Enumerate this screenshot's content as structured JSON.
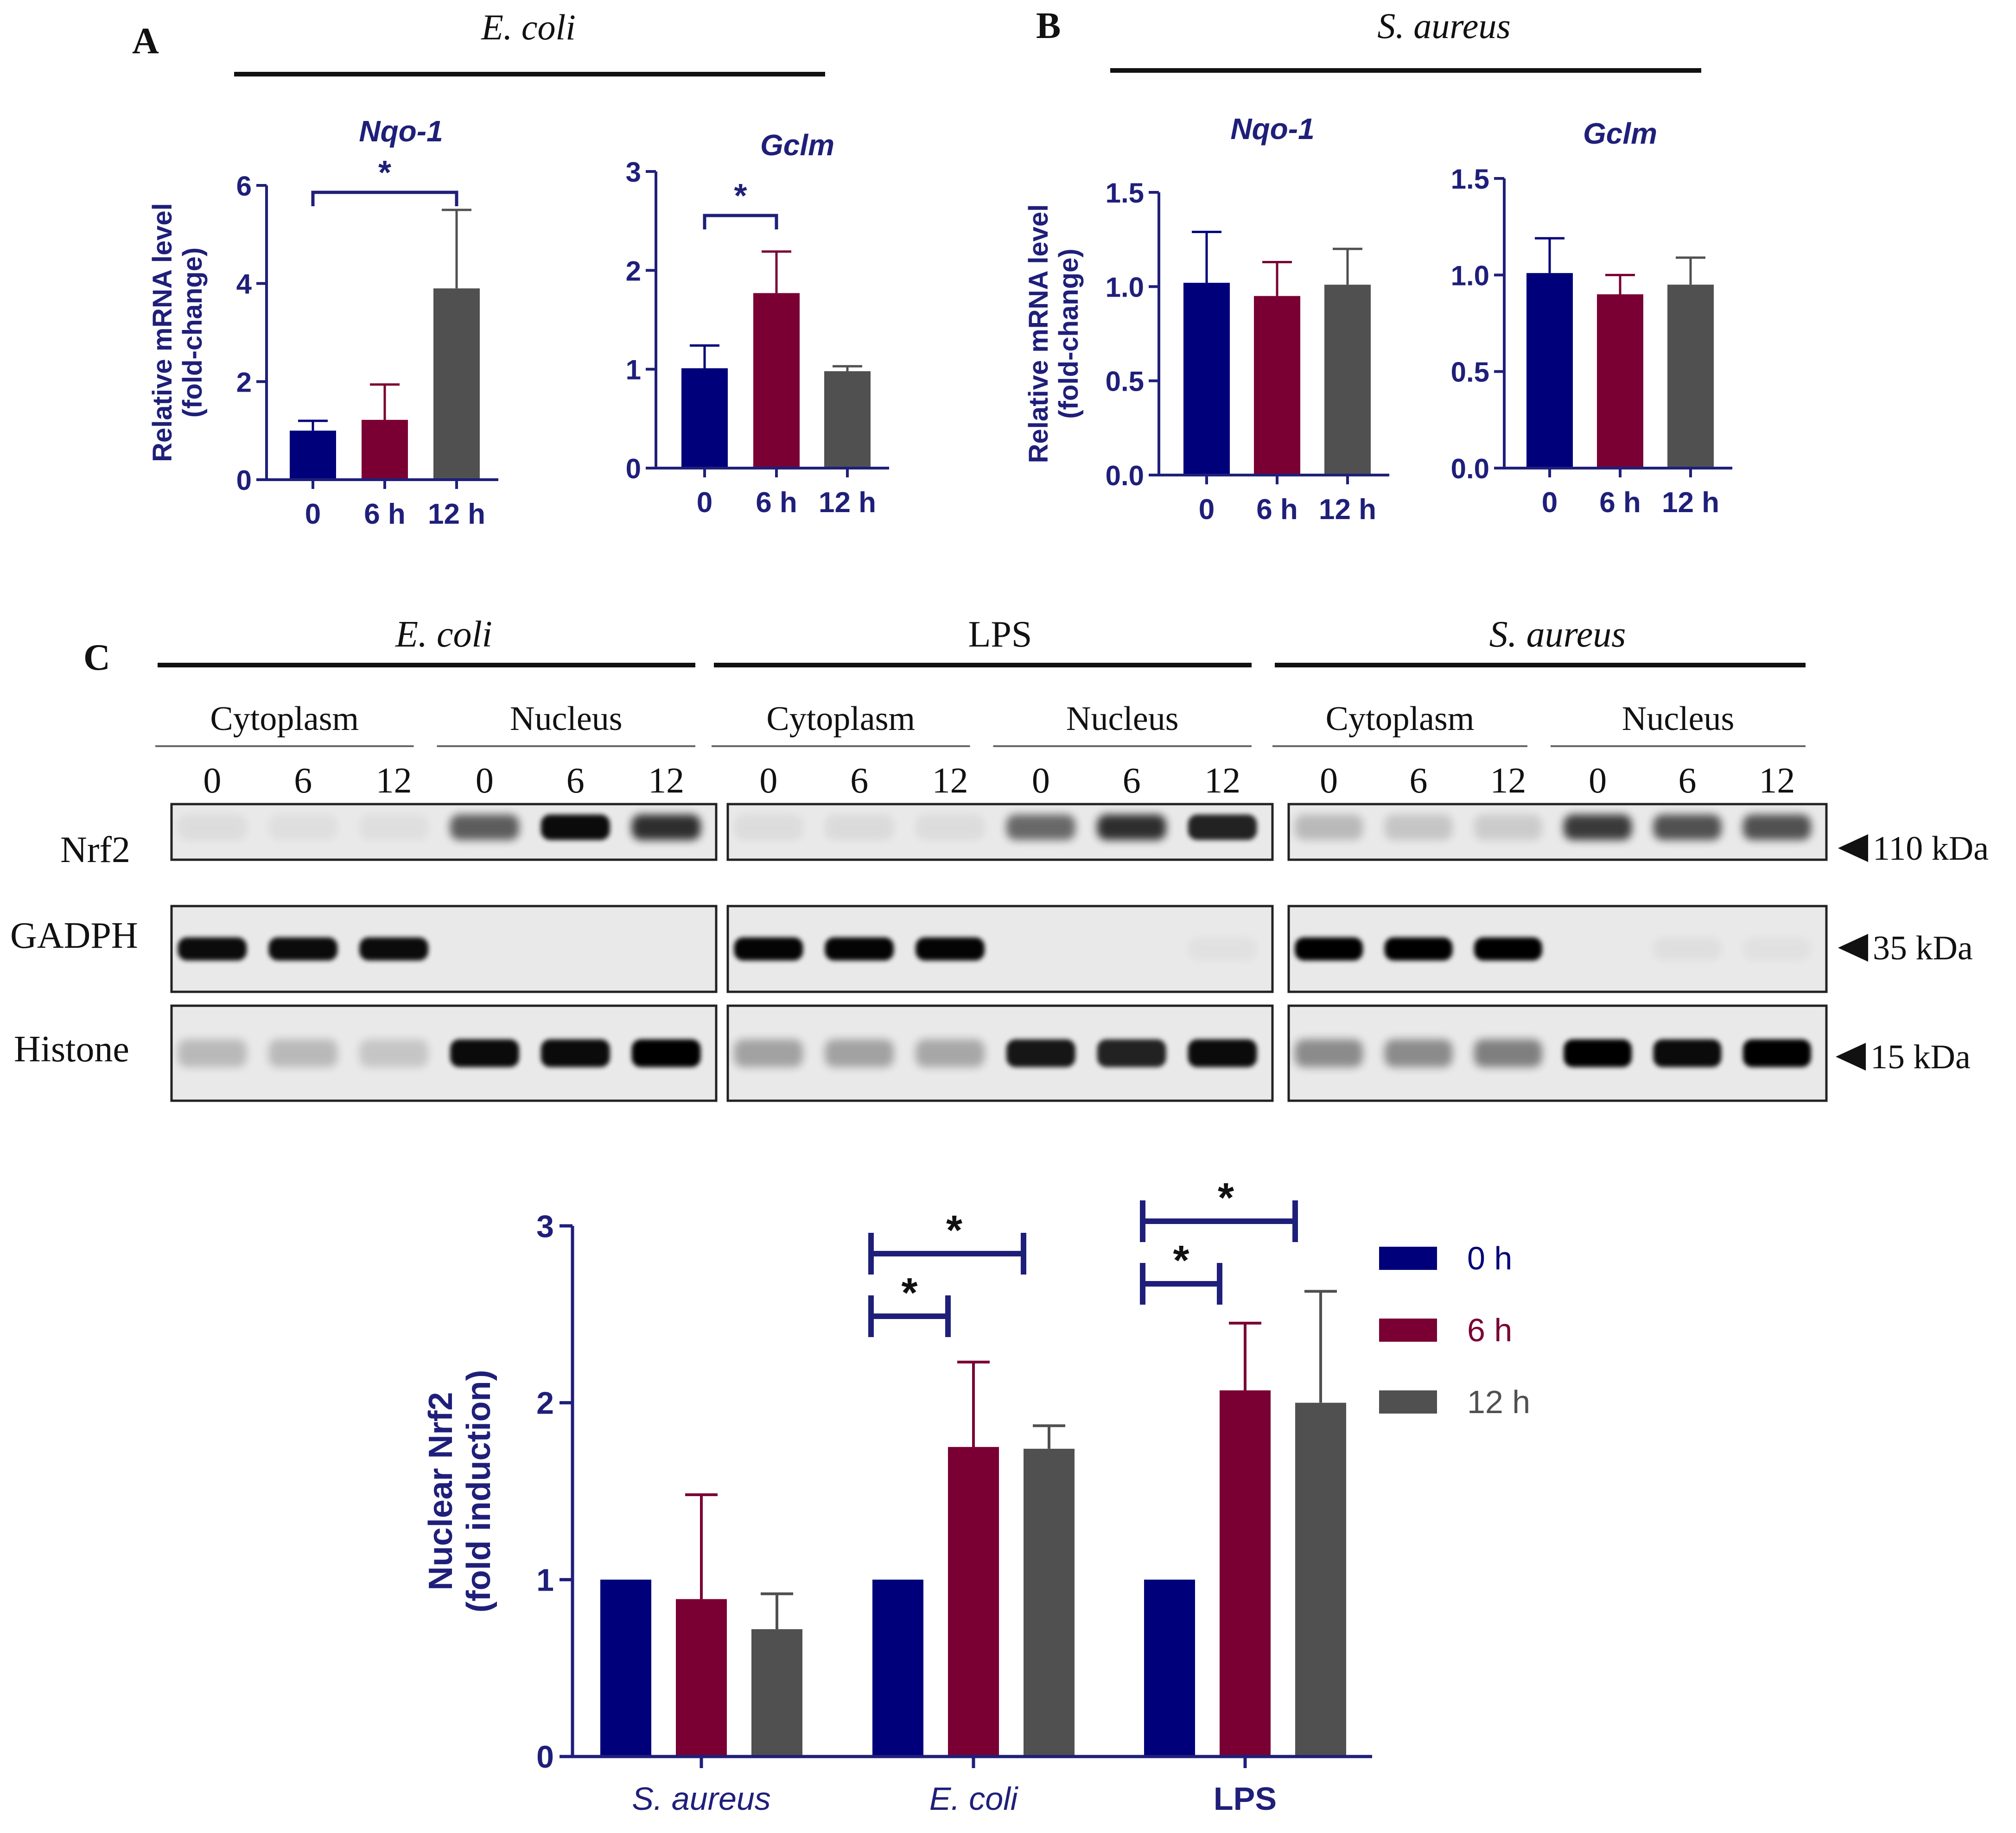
{
  "colors": {
    "navy": "#00007a",
    "maroon": "#7a0033",
    "gray": "#505050",
    "axis": "#1f1f7a",
    "text": "#111111"
  },
  "panels": {
    "a": {
      "letter": "A",
      "group": "E. coli"
    },
    "b": {
      "letter": "B",
      "group": "S. aureus"
    },
    "c": {
      "letter": "C"
    }
  },
  "blot": {
    "groups": [
      "E. coli",
      "LPS",
      "S. aureus"
    ],
    "fractions": [
      "Cytoplasm",
      "Nucleus"
    ],
    "lanes": [
      "0",
      "6",
      "12"
    ],
    "rows": [
      {
        "label": "Nrf2",
        "kda": "110 kDa"
      },
      {
        "label": "GADPH",
        "kda": "35 kDa"
      },
      {
        "label": "Histone",
        "kda": "15 kDa"
      }
    ]
  },
  "chart_data": [
    {
      "id": "a1",
      "type": "bar",
      "title": "Nqo-1",
      "ylabel": "Relative mRNA level (fold-change)",
      "categories": [
        "0",
        "6 h",
        "12 h"
      ],
      "values": [
        1.0,
        1.22,
        3.9
      ],
      "errors": [
        0.2,
        0.72,
        1.6
      ],
      "ylim": [
        0,
        6
      ],
      "yticks": [
        "0",
        "2",
        "4",
        "6"
      ],
      "ytick_values": [
        0,
        2,
        4,
        6
      ],
      "sig": [
        {
          "from": 0,
          "to": 2,
          "label": "*"
        }
      ]
    },
    {
      "id": "a2",
      "type": "bar",
      "title": "Gclm",
      "ylabel": "",
      "categories": [
        "0",
        "6 h",
        "12 h"
      ],
      "values": [
        1.01,
        1.77,
        0.98
      ],
      "errors": [
        0.23,
        0.42,
        0.05
      ],
      "ylim": [
        0,
        3
      ],
      "yticks": [
        "0",
        "1",
        "2",
        "3"
      ],
      "ytick_values": [
        0,
        1,
        2,
        3
      ],
      "sig": [
        {
          "from": 0,
          "to": 1,
          "label": "*"
        }
      ]
    },
    {
      "id": "b1",
      "type": "bar",
      "title": "Nqo-1",
      "ylabel": "Relative mRNA level (fold-change)",
      "categories": [
        "0",
        "6 h",
        "12 h"
      ],
      "values": [
        1.02,
        0.95,
        1.01
      ],
      "errors": [
        0.27,
        0.18,
        0.19
      ],
      "ylim": [
        0,
        1.5
      ],
      "yticks": [
        "0.0",
        "0.5",
        "1.0",
        "1.5"
      ],
      "ytick_values": [
        0,
        0.5,
        1,
        1.5
      ],
      "sig": []
    },
    {
      "id": "b2",
      "type": "bar",
      "title": "Gclm",
      "ylabel": "",
      "categories": [
        "0",
        "6 h",
        "12 h"
      ],
      "values": [
        1.01,
        0.9,
        0.95
      ],
      "errors": [
        0.18,
        0.1,
        0.14
      ],
      "ylim": [
        0,
        1.5
      ],
      "yticks": [
        "0.0",
        "0.5",
        "1.0",
        "1.5"
      ],
      "ytick_values": [
        0,
        0.5,
        1,
        1.5
      ],
      "sig": []
    },
    {
      "id": "c",
      "type": "bar",
      "ylabel": "Nuclear Nrf2 (fold induction)",
      "categories": [
        "S. aureus",
        "E. coli",
        "LPS"
      ],
      "series": [
        {
          "name": "0 h",
          "values": [
            1.0,
            1.0,
            1.0
          ],
          "errors": [
            0,
            0,
            0
          ]
        },
        {
          "name": "6 h",
          "values": [
            0.89,
            1.75,
            2.07
          ],
          "errors": [
            0.59,
            0.48,
            0.38
          ]
        },
        {
          "name": "12 h",
          "values": [
            0.72,
            1.74,
            2.0
          ],
          "errors": [
            0.2,
            0.13,
            0.63
          ]
        }
      ],
      "ylim": [
        0,
        3
      ],
      "yticks": [
        "0",
        "1",
        "2",
        "3"
      ],
      "ytick_values": [
        0,
        1,
        2,
        3
      ],
      "legend": "right",
      "sig": [
        {
          "category": 1,
          "from": 0,
          "to": 1,
          "label": "*"
        },
        {
          "category": 1,
          "from": 0,
          "to": 2,
          "label": "*"
        },
        {
          "category": 2,
          "from": 0,
          "to": 1,
          "label": "*"
        },
        {
          "category": 2,
          "from": 0,
          "to": 2,
          "label": "*"
        }
      ]
    }
  ]
}
